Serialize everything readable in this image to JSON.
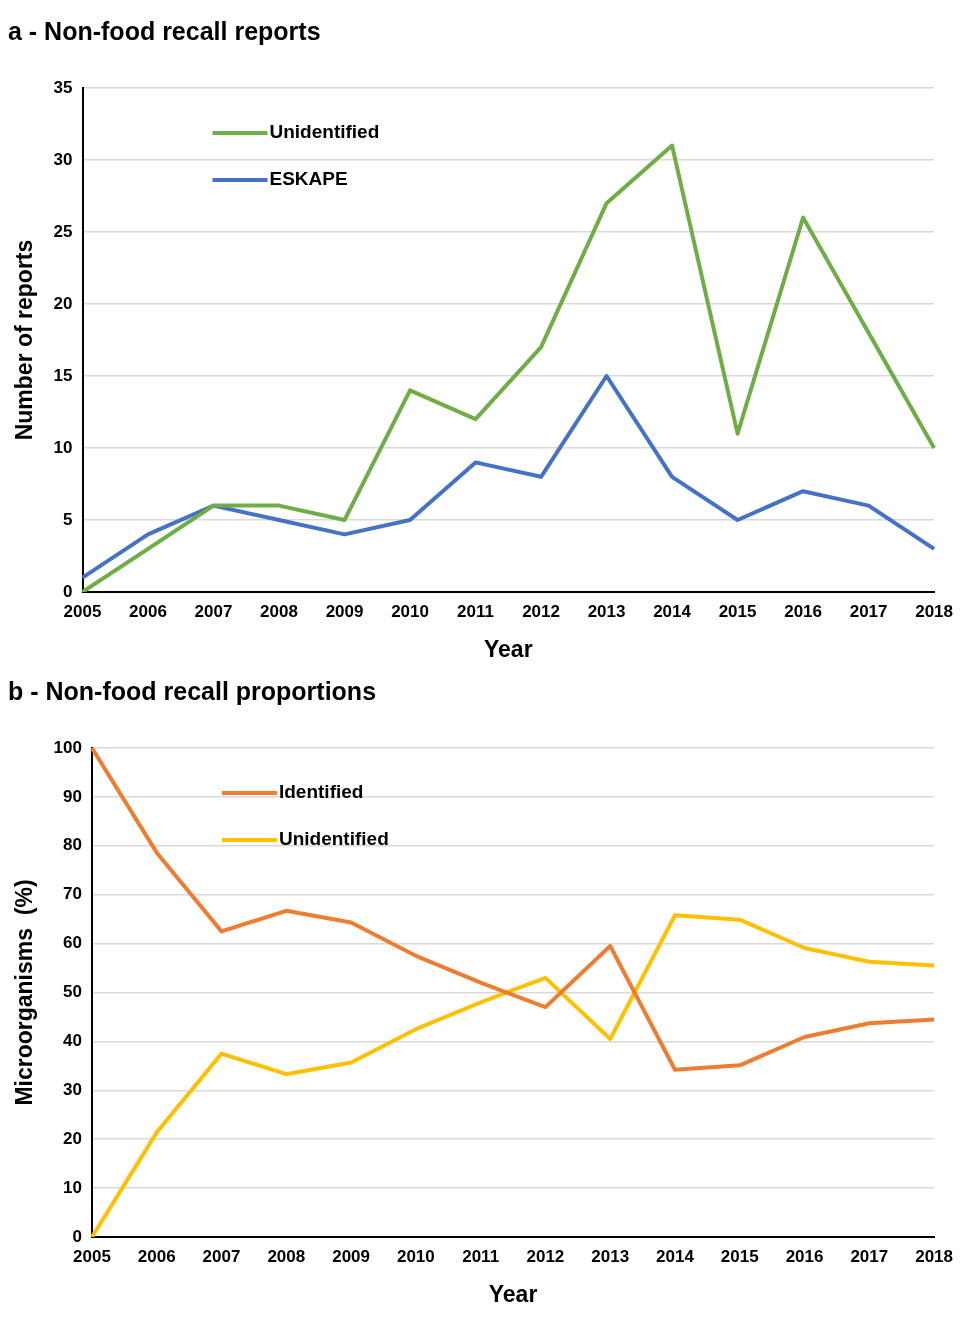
{
  "chart_data": [
    {
      "type": "line",
      "title": "a - Non-food recall reports",
      "xlabel": "Year",
      "ylabel": "Number of reports",
      "categories": [
        "2005",
        "2006",
        "2007",
        "2008",
        "2009",
        "2010",
        "2011",
        "2012",
        "2013",
        "2014",
        "2015",
        "2016",
        "2017",
        "2018"
      ],
      "series": [
        {
          "name": "Unidentified",
          "color": "#70ad47",
          "values": [
            0,
            3,
            6,
            6,
            5,
            14,
            12,
            17,
            27,
            31,
            11,
            26,
            18,
            10
          ]
        },
        {
          "name": "ESKAPE",
          "color": "#4472c4",
          "values": [
            1,
            4,
            6,
            5,
            4,
            5,
            9,
            8,
            15,
            8,
            5,
            7,
            6,
            3
          ]
        }
      ],
      "ylim": [
        0,
        35
      ],
      "yticks": [
        0,
        5,
        10,
        15,
        20,
        25,
        30,
        35
      ],
      "grid": "y",
      "legend": "top left",
      "marker": "none",
      "line_style": "solid"
    },
    {
      "type": "line",
      "title": "b - Non-food recall proportions",
      "xlabel": "Year",
      "ylabel": "Microorganisms  (%)",
      "categories": [
        "2005",
        "2006",
        "2007",
        "2008",
        "2009",
        "2010",
        "2011",
        "2012",
        "2013",
        "2014",
        "2015",
        "2016",
        "2017",
        "2018"
      ],
      "series": [
        {
          "name": "Identified",
          "color": "#ed7d31",
          "values": [
            100,
            78.6,
            62.5,
            66.7,
            64.3,
            57.5,
            52,
            47,
            59.5,
            34.2,
            35.1,
            40.9,
            43.7,
            44.5
          ]
        },
        {
          "name": "Unidentified",
          "color": "#ffc000",
          "values": [
            0,
            21.4,
            37.5,
            33.3,
            35.7,
            42.5,
            48,
            53,
            40.5,
            65.8,
            64.9,
            59.1,
            56.3,
            55.5
          ]
        }
      ],
      "ylim": [
        0,
        100
      ],
      "yticks": [
        0,
        10,
        20,
        30,
        40,
        50,
        60,
        70,
        80,
        90,
        100
      ],
      "grid": "y",
      "legend": "top left",
      "marker": "none",
      "line_style": "solid"
    }
  ]
}
